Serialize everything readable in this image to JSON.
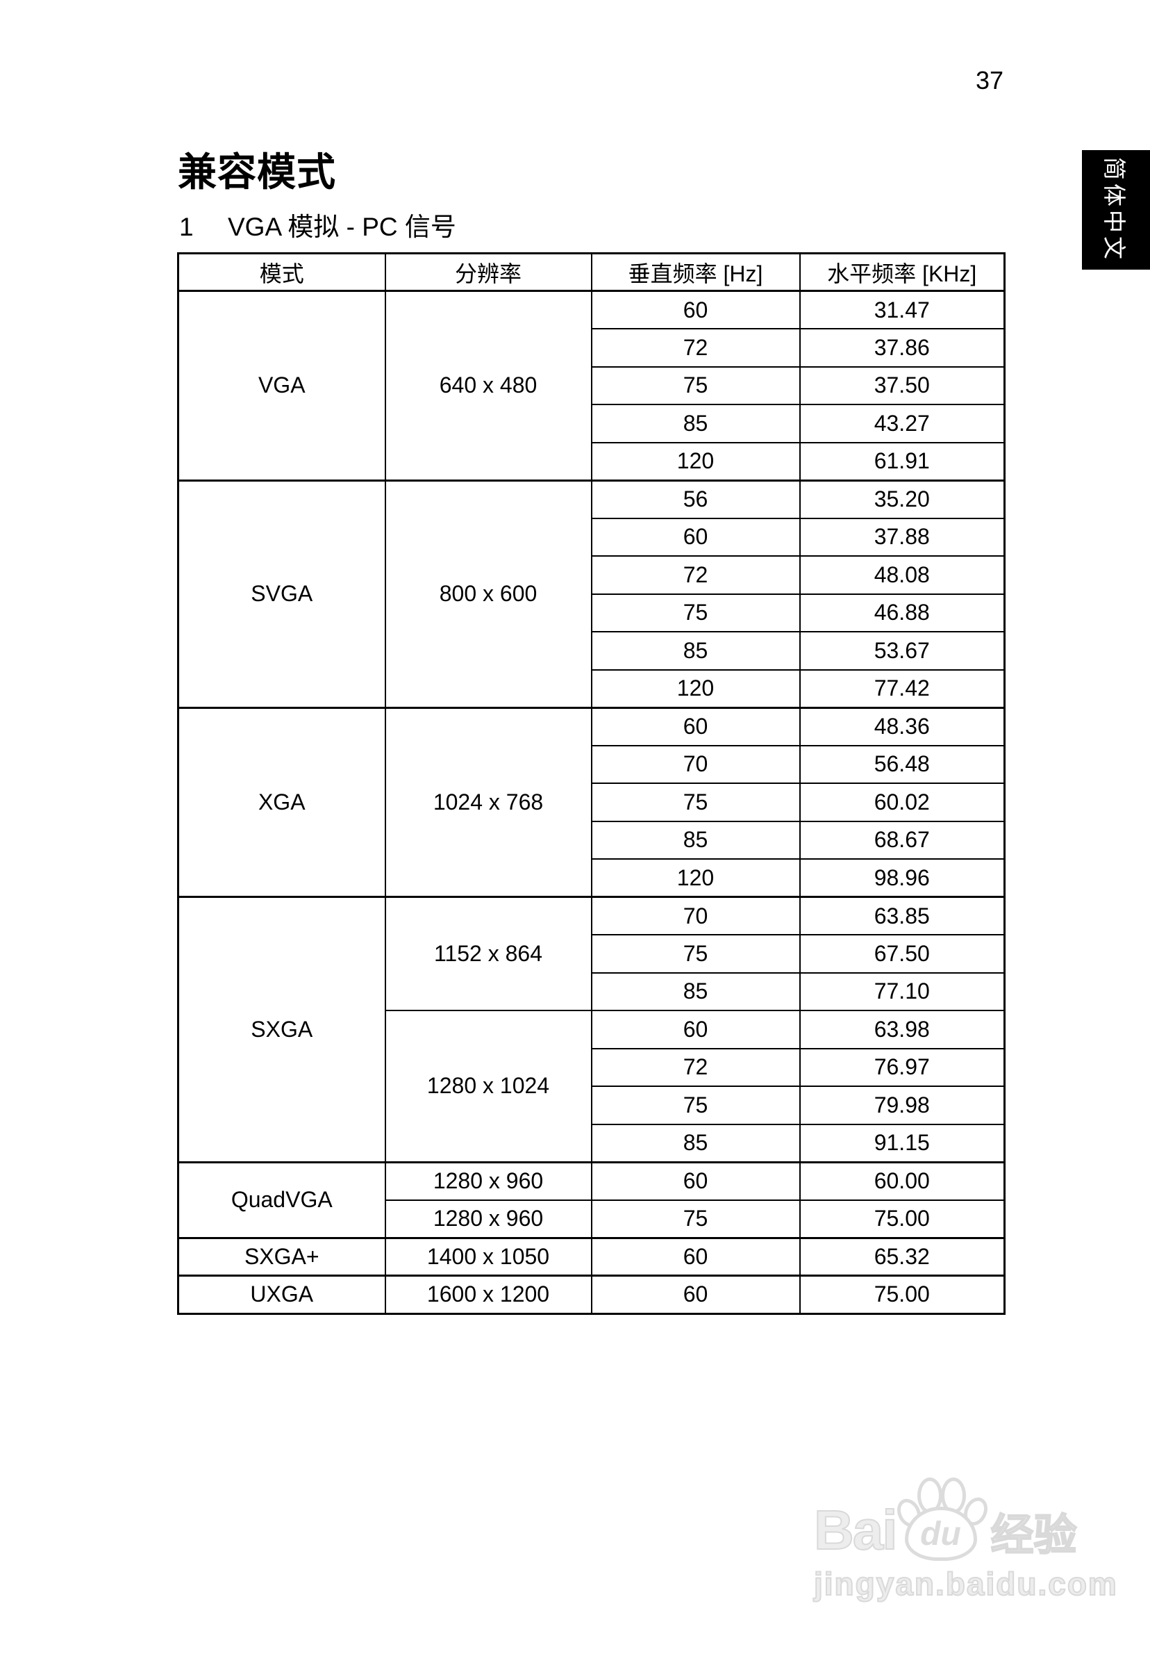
{
  "page": {
    "number": "37",
    "title": "兼容模式"
  },
  "section": {
    "number": "1",
    "title": "VGA 模拟 - PC 信号"
  },
  "language_tab": {
    "label": "简体中文",
    "background_color": "#000000",
    "text_color": "#ffffff"
  },
  "table": {
    "headers": [
      "模式",
      "分辨率",
      "垂直频率 [Hz]",
      "水平频率 [KHz]"
    ],
    "groups": [
      {
        "mode": "VGA",
        "resolutions": [
          {
            "label": "640 x 480",
            "rows": [
              [
                "60",
                "31.47"
              ],
              [
                "72",
                "37.86"
              ],
              [
                "75",
                "37.50"
              ],
              [
                "85",
                "43.27"
              ],
              [
                "120",
                "61.91"
              ]
            ]
          }
        ]
      },
      {
        "mode": "SVGA",
        "resolutions": [
          {
            "label": "800 x 600",
            "rows": [
              [
                "56",
                "35.20"
              ],
              [
                "60",
                "37.88"
              ],
              [
                "72",
                "48.08"
              ],
              [
                "75",
                "46.88"
              ],
              [
                "85",
                "53.67"
              ],
              [
                "120",
                "77.42"
              ]
            ]
          }
        ]
      },
      {
        "mode": "XGA",
        "resolutions": [
          {
            "label": "1024 x 768",
            "rows": [
              [
                "60",
                "48.36"
              ],
              [
                "70",
                "56.48"
              ],
              [
                "75",
                "60.02"
              ],
              [
                "85",
                "68.67"
              ],
              [
                "120",
                "98.96"
              ]
            ]
          }
        ]
      },
      {
        "mode": "SXGA",
        "resolutions": [
          {
            "label": "1152 x 864",
            "rows": [
              [
                "70",
                "63.85"
              ],
              [
                "75",
                "67.50"
              ],
              [
                "85",
                "77.10"
              ]
            ]
          },
          {
            "label": "1280 x 1024",
            "rows": [
              [
                "60",
                "63.98"
              ],
              [
                "72",
                "76.97"
              ],
              [
                "75",
                "79.98"
              ],
              [
                "85",
                "91.15"
              ]
            ]
          }
        ]
      },
      {
        "mode": "QuadVGA",
        "resolutions": [
          {
            "label": "1280 x 960",
            "rows": [
              [
                "60",
                "60.00"
              ]
            ]
          },
          {
            "label": "1280 x 960",
            "rows": [
              [
                "75",
                "75.00"
              ]
            ]
          }
        ]
      },
      {
        "mode": "SXGA+",
        "resolutions": [
          {
            "label": "1400 x 1050",
            "rows": [
              [
                "60",
                "65.32"
              ]
            ]
          }
        ]
      },
      {
        "mode": "UXGA",
        "resolutions": [
          {
            "label": "1600 x 1200",
            "rows": [
              [
                "60",
                "75.00"
              ]
            ]
          }
        ]
      }
    ]
  },
  "watermark": {
    "brand_left": "Bai",
    "brand_paw_text": "du",
    "brand_cjk": "经验",
    "tagline": "jingyan.baidu.com",
    "paw_icon": "baidu-paw-icon",
    "color": "#dcdcdc"
  }
}
